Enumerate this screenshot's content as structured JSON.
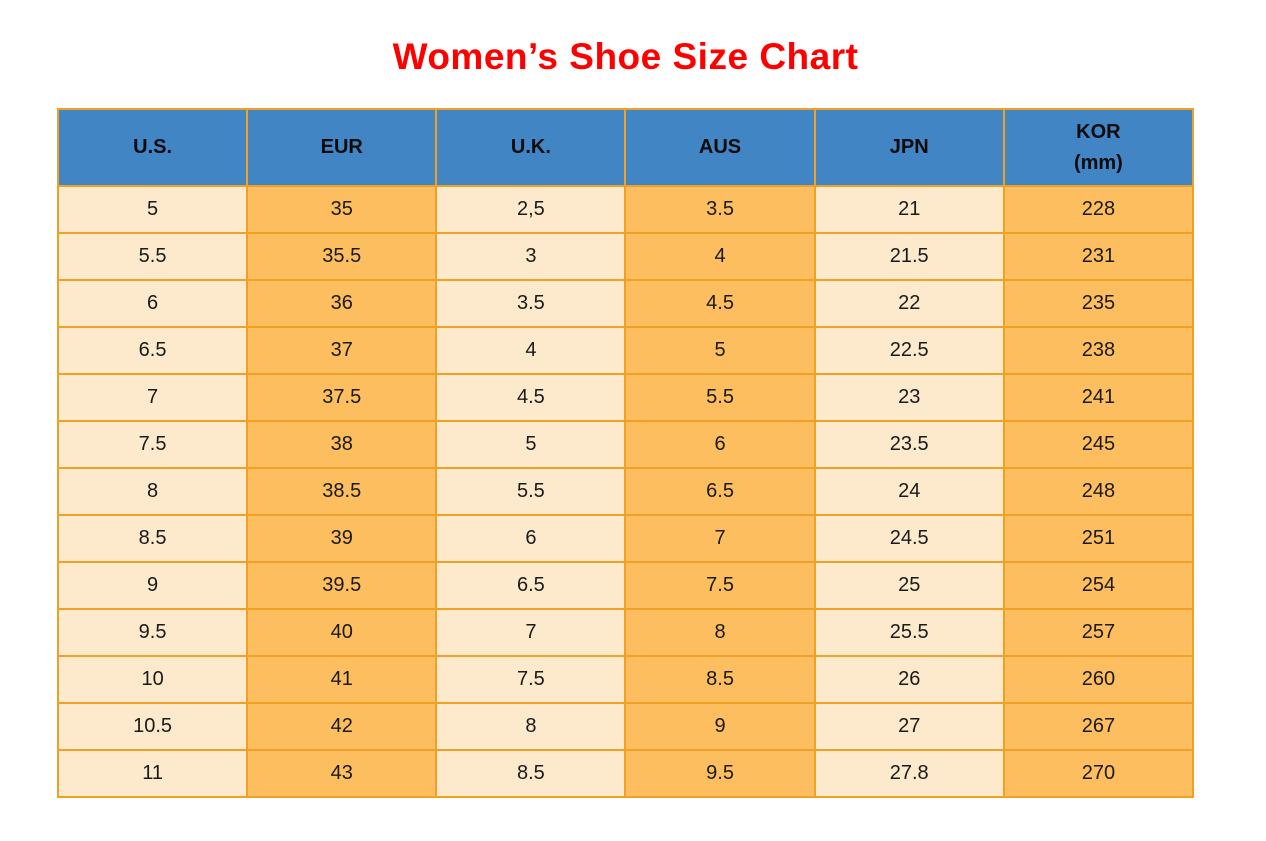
{
  "title": "Women’s Shoe Size Chart",
  "colors": {
    "title_color": "#FF0000",
    "header_bg": "#4285C5",
    "header_text": "#0B0B0B",
    "col_light": "#FDE9CB",
    "col_dark": "#FCBE5E",
    "border_color": "#F0A125",
    "cell_text": "#1A1A1A",
    "page_bg": "#FFFFFF"
  },
  "chart_data": {
    "type": "table",
    "title": "Women’s Shoe Size Chart",
    "columns": [
      {
        "label": "U.S.",
        "shade": "light"
      },
      {
        "label": "EUR",
        "shade": "dark"
      },
      {
        "label": "U.K.",
        "shade": "light"
      },
      {
        "label": "AUS",
        "shade": "dark"
      },
      {
        "label": "JPN",
        "shade": "light"
      },
      {
        "label": "KOR",
        "sublabel": "(mm)",
        "shade": "dark"
      }
    ],
    "rows": [
      [
        "5",
        "35",
        "2,5",
        "3.5",
        "21",
        "228"
      ],
      [
        "5.5",
        "35.5",
        "3",
        "4",
        "21.5",
        "231"
      ],
      [
        "6",
        "36",
        "3.5",
        "4.5",
        "22",
        "235"
      ],
      [
        "6.5",
        "37",
        "4",
        "5",
        "22.5",
        "238"
      ],
      [
        "7",
        "37.5",
        "4.5",
        "5.5",
        "23",
        "241"
      ],
      [
        "7.5",
        "38",
        "5",
        "6",
        "23.5",
        "245"
      ],
      [
        "8",
        "38.5",
        "5.5",
        "6.5",
        "24",
        "248"
      ],
      [
        "8.5",
        "39",
        "6",
        "7",
        "24.5",
        "251"
      ],
      [
        "9",
        "39.5",
        "6.5",
        "7.5",
        "25",
        "254"
      ],
      [
        "9.5",
        "40",
        "7",
        "8",
        "25.5",
        "257"
      ],
      [
        "10",
        "41",
        "7.5",
        "8.5",
        "26",
        "260"
      ],
      [
        "10.5",
        "42",
        "8",
        "9",
        "27",
        "267"
      ],
      [
        "11",
        "43",
        "8.5",
        "9.5",
        "27.8",
        "270"
      ]
    ]
  }
}
